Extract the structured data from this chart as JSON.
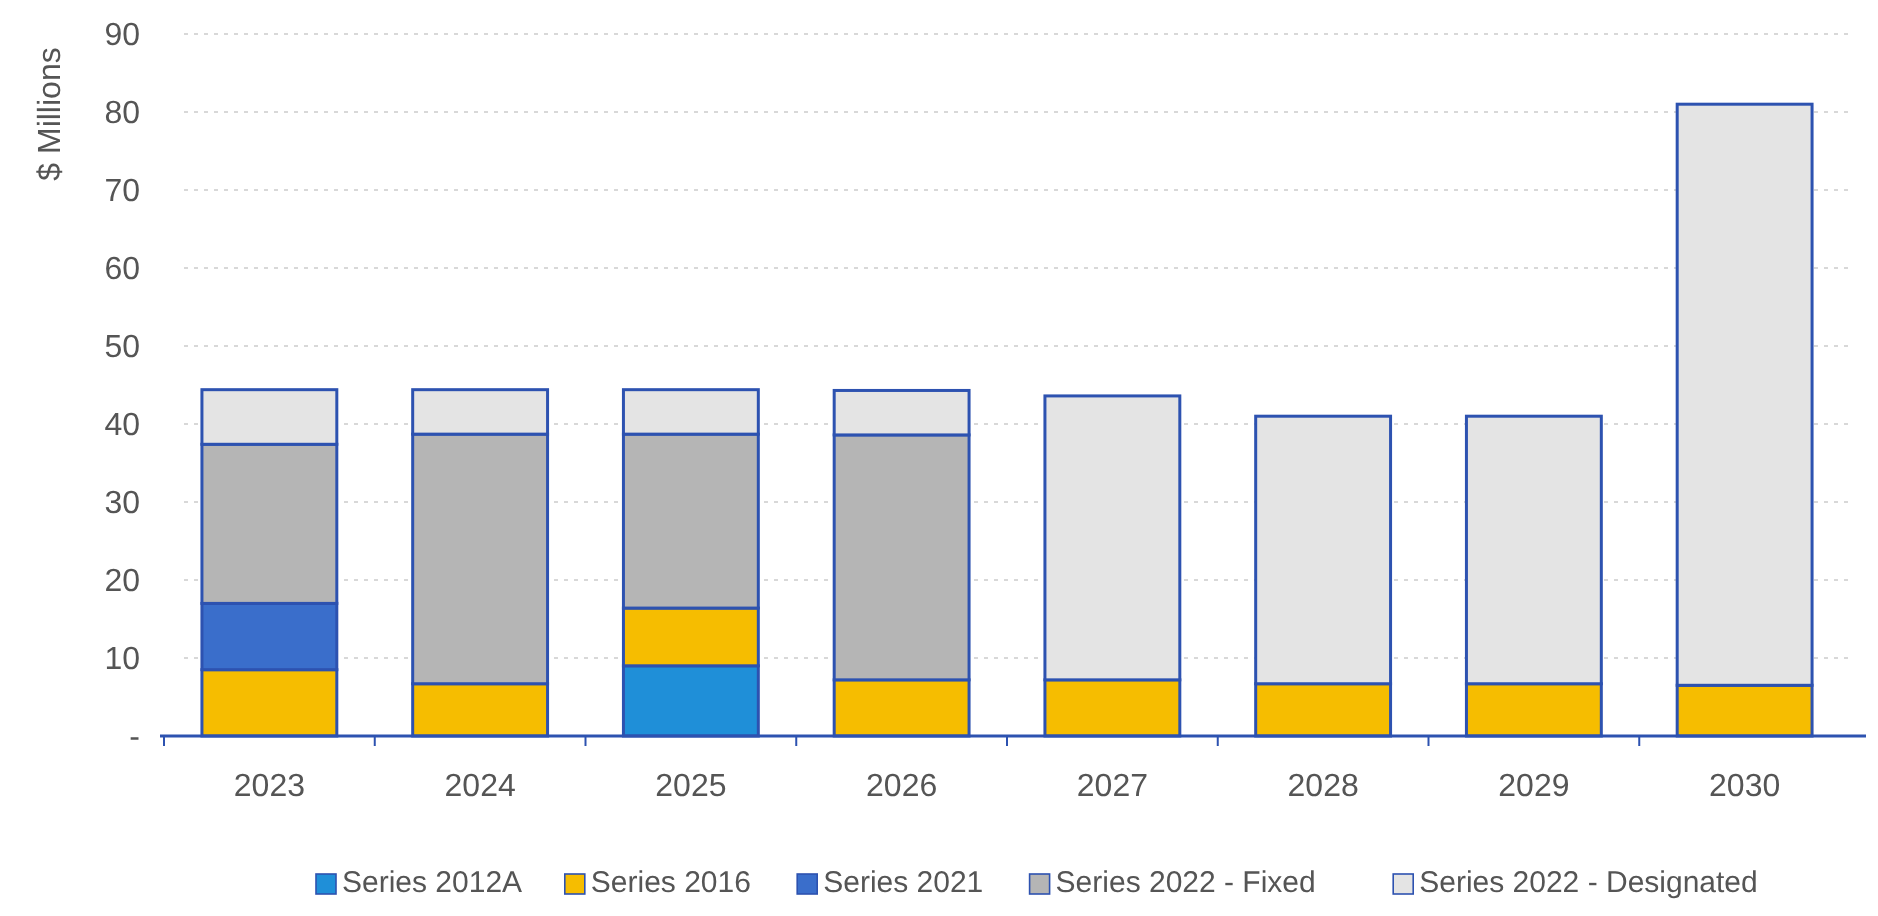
{
  "chart_data": {
    "type": "bar",
    "stacked": true,
    "ylabel": "$ Millions",
    "categories": [
      "2023",
      "2024",
      "2025",
      "2026",
      "2027",
      "2028",
      "2029",
      "2030"
    ],
    "series": [
      {
        "name": "Series 2012A",
        "color": "#1f8fd8",
        "values": [
          null,
          null,
          9.0,
          null,
          null,
          null,
          null,
          null
        ]
      },
      {
        "name": "Series 2016",
        "color": "#f6bd00",
        "values": [
          8.5,
          6.7,
          7.4,
          7.2,
          7.2,
          6.7,
          6.7,
          6.5
        ]
      },
      {
        "name": "Series 2021",
        "color": "#3a6ecb",
        "values": [
          8.5,
          null,
          null,
          null,
          null,
          null,
          null,
          null
        ]
      },
      {
        "name": "Series 2022 - Fixed",
        "color": "#b5b5b5",
        "values": [
          20.4,
          32.0,
          22.3,
          31.4,
          null,
          null,
          null,
          null
        ]
      },
      {
        "name": "Series 2022 - Designated",
        "color": "#e4e4e4",
        "values": [
          7.0,
          5.7,
          5.7,
          5.7,
          36.4,
          34.3,
          34.3,
          74.5
        ]
      }
    ],
    "ylim": [
      0,
      90
    ],
    "yticks": [
      {
        "value": 0,
        "label": "-"
      },
      10,
      20,
      30,
      40,
      50,
      60,
      70,
      80,
      90
    ],
    "grid": "y",
    "legend": "bottom"
  }
}
